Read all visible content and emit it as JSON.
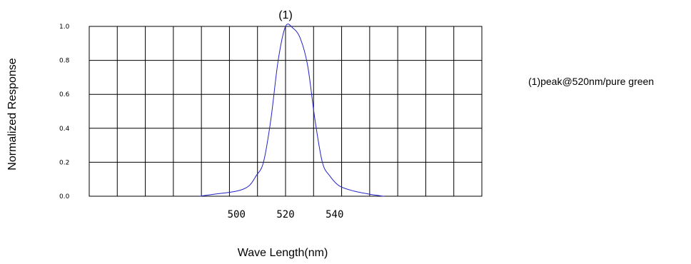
{
  "chart_data": {
    "type": "line",
    "title": "",
    "xlabel": "Wave Length(nm)",
    "ylabel": "Normalized  Response",
    "xlim": [
      440,
      600
    ],
    "ylim": [
      0.0,
      1.0
    ],
    "grid": true,
    "y_ticks": [
      "0.0",
      "0.2",
      "0.4",
      "0.6",
      "0.8",
      "1.0"
    ],
    "x_ticks": [
      {
        "value": 500,
        "label": "500"
      },
      {
        "value": 520,
        "label": "520"
      },
      {
        "value": 540,
        "label": "540"
      }
    ],
    "series": [
      {
        "color": "#2323c8",
        "x": [
          485,
          490,
          500,
          505,
          508,
          511,
          514,
          517,
          520,
          523,
          526,
          529,
          532,
          535,
          538,
          542,
          548,
          555,
          560
        ],
        "y": [
          0.0,
          0.01,
          0.03,
          0.06,
          0.12,
          0.2,
          0.45,
          0.8,
          1.0,
          0.99,
          0.93,
          0.77,
          0.45,
          0.2,
          0.12,
          0.06,
          0.03,
          0.01,
          0.0
        ]
      }
    ],
    "annotations": [
      {
        "text": "(1)",
        "x": 520,
        "y": 1.0
      }
    ],
    "legend": {
      "text": "(1)peak@520nm/pure green",
      "position": "right"
    }
  }
}
